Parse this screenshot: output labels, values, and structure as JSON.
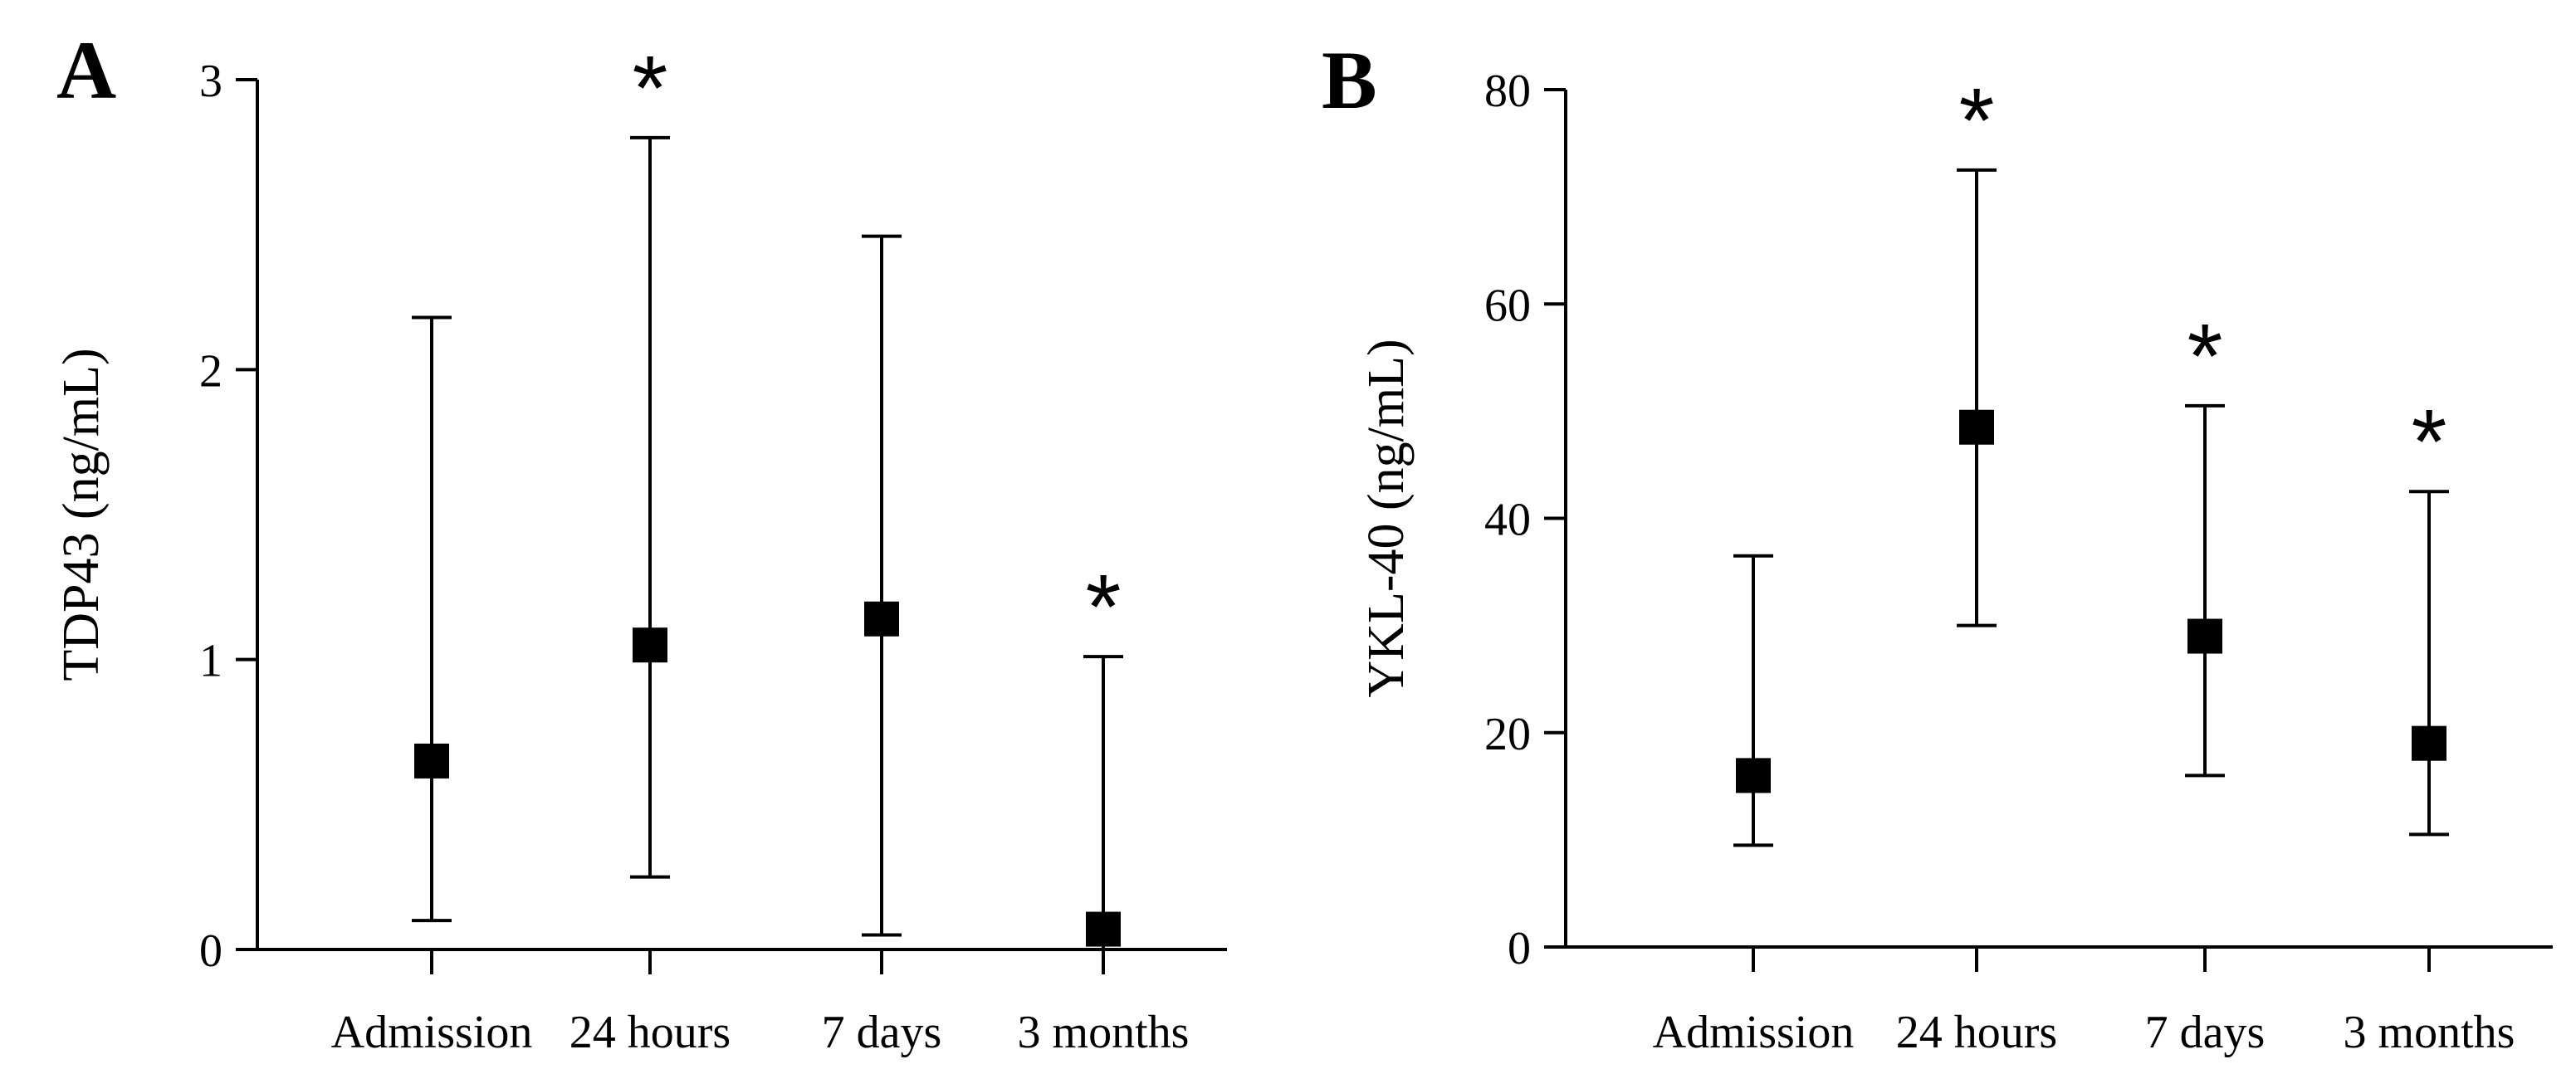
{
  "chart_data": [
    {
      "type": "scatter",
      "panel_label": "A",
      "title": "",
      "xlabel": "",
      "ylabel": "TDP43 (ng/mL)",
      "ylim": [
        0,
        3
      ],
      "yticks": [
        0,
        1,
        2,
        3
      ],
      "ytick_labels": [
        "0",
        "1",
        "2",
        "3"
      ],
      "categories": [
        "Admission",
        "24 hours",
        "7 days",
        "3 months"
      ],
      "series": [
        {
          "name": "TDP43",
          "values": [
            0.65,
            1.05,
            1.14,
            0.07
          ],
          "err_low": [
            0.1,
            0.25,
            0.05,
            0.0
          ],
          "err_high": [
            2.18,
            2.8,
            2.46,
            1.01
          ],
          "significant": [
            false,
            true,
            false,
            true
          ]
        }
      ],
      "annotation": "*"
    },
    {
      "type": "scatter",
      "panel_label": "B",
      "title": "",
      "xlabel": "",
      "ylabel": "YKL-40 (ng/mL)",
      "ylim": [
        0,
        80
      ],
      "yticks": [
        0,
        20,
        40,
        60,
        80
      ],
      "ytick_labels": [
        "0",
        "20",
        "40",
        "60",
        "80"
      ],
      "categories": [
        "Admission",
        "24 hours",
        "7 days",
        "3 months"
      ],
      "series": [
        {
          "name": "YKL-40",
          "values": [
            16,
            48.5,
            29,
            19
          ],
          "err_low": [
            9.5,
            30,
            16,
            10.5
          ],
          "err_high": [
            36.5,
            72.5,
            50.5,
            42.5
          ],
          "significant": [
            false,
            true,
            true,
            true
          ]
        }
      ],
      "annotation": "*"
    }
  ]
}
